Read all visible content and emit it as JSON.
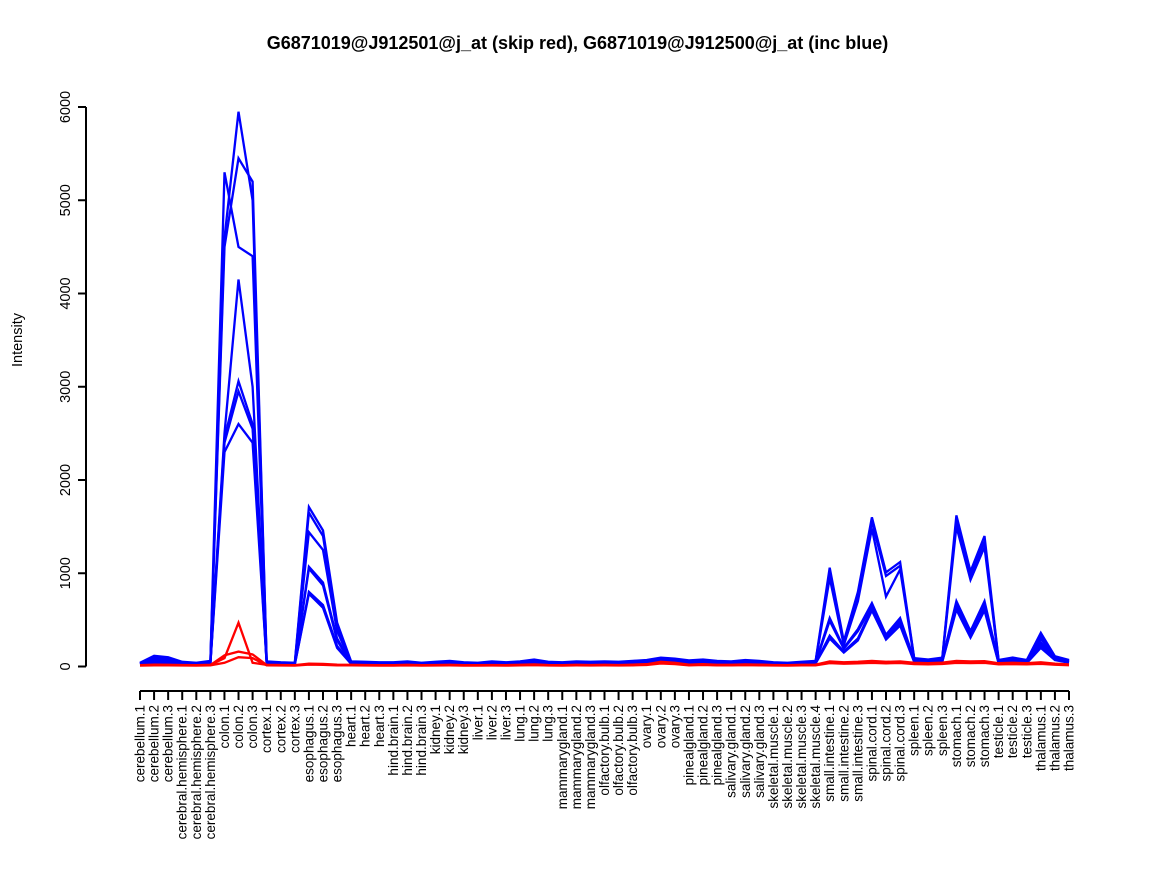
{
  "chart_data": {
    "type": "line",
    "title": "G6871019@J912501@j_at (skip red), G6871019@J912500@j_at (inc blue)",
    "xlabel": "",
    "ylabel": "Intensity",
    "ylim": [
      0,
      6000
    ],
    "yticks": [
      0,
      1000,
      2000,
      3000,
      4000,
      5000,
      6000
    ],
    "grid": false,
    "legend_position": "none",
    "legend_note": {
      "skip_group": "skip red",
      "inc_group": "inc blue"
    },
    "colors": {
      "inc": "#0000ff",
      "skip": "#ff0000",
      "axis": "#000000",
      "background": "#ffffff"
    },
    "categories": [
      "cerebellum.1",
      "cerebellum.2",
      "cerebellum.3",
      "cerebral.hemisphere.1",
      "cerebral.hemisphere.2",
      "cerebral.hemisphere.3",
      "colon.1",
      "colon.2",
      "colon.3",
      "cortex.1",
      "cortex.2",
      "cortex.3",
      "esophagus.1",
      "esophagus.2",
      "esophagus.3",
      "heart.1",
      "heart.2",
      "heart.3",
      "hind.brain.1",
      "hind.brain.2",
      "hind.brain.3",
      "kidney.1",
      "kidney.2",
      "kidney.3",
      "liver.1",
      "liver.2",
      "liver.3",
      "lung.1",
      "lung.2",
      "lung.3",
      "mammarygland.1",
      "mammarygland.2",
      "mammarygland.3",
      "olfactory.bulb.1",
      "olfactory.bulb.2",
      "olfactory.bulb.3",
      "ovary.1",
      "ovary.2",
      "ovary.3",
      "pinealgland.1",
      "pinealgland.2",
      "pinealgland.3",
      "salivary.gland.1",
      "salivary.gland.2",
      "salivary.gland.3",
      "skeletal.muscle.1",
      "skeletal.muscle.2",
      "skeletal.muscle.3",
      "skeletal.muscle.4",
      "small.intestine.1",
      "small.intestine.2",
      "small.intestine.3",
      "spinal.cord.1",
      "spinal.cord.2",
      "spinal.cord.3",
      "spleen.1",
      "spleen.2",
      "spleen.3",
      "stomach.1",
      "stomach.2",
      "stomach.3",
      "testicle.1",
      "testicle.2",
      "testicle.3",
      "thalamus.1",
      "thalamus.2",
      "thalamus.3"
    ],
    "series": [
      {
        "name": "inc-blue-1",
        "group": "inc",
        "color": "#0000ff",
        "values": [
          40,
          115,
          100,
          50,
          40,
          60,
          4600,
          5950,
          5000,
          55,
          45,
          40,
          1710,
          1460,
          470,
          55,
          50,
          45,
          45,
          55,
          40,
          50,
          60,
          45,
          40,
          55,
          45,
          55,
          75,
          50,
          45,
          55,
          50,
          55,
          50,
          60,
          70,
          95,
          85,
          65,
          75,
          60,
          55,
          70,
          60,
          45,
          40,
          50,
          60,
          1060,
          270,
          800,
          1600,
          1010,
          1120,
          90,
          75,
          95,
          1620,
          1020,
          1400,
          70,
          95,
          70,
          360,
          110,
          70
        ]
      },
      {
        "name": "inc-blue-2",
        "group": "inc",
        "color": "#0000ff",
        "values": [
          35,
          95,
          85,
          45,
          35,
          55,
          4500,
          5450,
          5200,
          50,
          40,
          35,
          1650,
          1400,
          430,
          50,
          45,
          40,
          40,
          50,
          35,
          45,
          55,
          40,
          35,
          50,
          40,
          50,
          70,
          45,
          40,
          50,
          45,
          50,
          45,
          55,
          65,
          90,
          80,
          60,
          70,
          55,
          50,
          65,
          55,
          40,
          35,
          45,
          55,
          1000,
          250,
          750,
          1550,
          970,
          1080,
          85,
          70,
          90,
          1560,
          970,
          1340,
          65,
          90,
          65,
          330,
          100,
          65
        ]
      },
      {
        "name": "inc-blue-3",
        "group": "inc",
        "color": "#0000ff",
        "values": [
          30,
          80,
          72,
          40,
          32,
          50,
          5300,
          4500,
          4400,
          45,
          38,
          32,
          1440,
          1250,
          380,
          45,
          40,
          36,
          36,
          45,
          32,
          40,
          50,
          36,
          32,
          45,
          36,
          45,
          62,
          40,
          36,
          45,
          40,
          45,
          40,
          50,
          58,
          82,
          72,
          54,
          64,
          50,
          45,
          58,
          50,
          36,
          32,
          40,
          50,
          950,
          230,
          700,
          1480,
          750,
          1040,
          78,
          64,
          82,
          1500,
          930,
          1280,
          60,
          82,
          60,
          300,
          95,
          60
        ]
      },
      {
        "name": "inc-blue-4",
        "group": "inc",
        "color": "#0000ff",
        "values": [
          28,
          60,
          52,
          36,
          28,
          45,
          2500,
          4150,
          3000,
          40,
          34,
          28,
          1070,
          900,
          300,
          40,
          36,
          32,
          32,
          40,
          28,
          36,
          44,
          32,
          28,
          40,
          32,
          40,
          55,
          36,
          32,
          40,
          36,
          40,
          36,
          44,
          52,
          72,
          64,
          48,
          56,
          44,
          40,
          52,
          44,
          32,
          28,
          36,
          44,
          520,
          200,
          400,
          680,
          340,
          520,
          70,
          56,
          72,
          700,
          380,
          700,
          52,
          72,
          52,
          260,
          85,
          55
        ]
      },
      {
        "name": "inc-blue-5",
        "group": "inc",
        "color": "#0000ff",
        "values": [
          25,
          48,
          45,
          32,
          25,
          40,
          2450,
          3060,
          2600,
          36,
          30,
          25,
          1050,
          870,
          280,
          36,
          32,
          28,
          28,
          36,
          25,
          32,
          40,
          28,
          25,
          36,
          28,
          36,
          50,
          32,
          28,
          36,
          32,
          36,
          32,
          40,
          46,
          64,
          56,
          42,
          50,
          40,
          36,
          46,
          40,
          28,
          25,
          32,
          40,
          490,
          190,
          380,
          650,
          320,
          490,
          62,
          50,
          64,
          660,
          350,
          660,
          46,
          64,
          46,
          240,
          80,
          50
        ]
      },
      {
        "name": "inc-blue-6",
        "group": "inc",
        "color": "#0000ff",
        "values": [
          22,
          42,
          40,
          28,
          22,
          36,
          2400,
          2950,
          2550,
          32,
          26,
          22,
          800,
          660,
          220,
          32,
          28,
          25,
          25,
          32,
          22,
          28,
          36,
          25,
          22,
          32,
          25,
          32,
          44,
          28,
          25,
          32,
          28,
          32,
          28,
          36,
          40,
          56,
          50,
          38,
          44,
          36,
          32,
          40,
          36,
          25,
          22,
          28,
          36,
          330,
          160,
          300,
          620,
          300,
          460,
          55,
          44,
          56,
          630,
          330,
          630,
          40,
          56,
          40,
          220,
          75,
          45
        ]
      },
      {
        "name": "inc-blue-7",
        "group": "inc",
        "color": "#0000ff",
        "values": [
          20,
          38,
          36,
          25,
          20,
          32,
          2300,
          2600,
          2400,
          28,
          23,
          20,
          780,
          630,
          200,
          28,
          25,
          22,
          22,
          28,
          20,
          25,
          32,
          22,
          20,
          28,
          22,
          28,
          40,
          25,
          22,
          28,
          25,
          28,
          25,
          32,
          36,
          50,
          44,
          34,
          40,
          32,
          28,
          36,
          32,
          22,
          20,
          25,
          32,
          300,
          150,
          280,
          600,
          290,
          440,
          48,
          40,
          50,
          610,
          310,
          600,
          36,
          50,
          36,
          200,
          70,
          40
        ]
      },
      {
        "name": "skip-red-1",
        "group": "skip",
        "color": "#ff0000",
        "values": [
          15,
          20,
          18,
          16,
          15,
          18,
          90,
          470,
          40,
          18,
          16,
          15,
          30,
          28,
          20,
          18,
          16,
          15,
          15,
          18,
          15,
          16,
          18,
          15,
          15,
          16,
          15,
          18,
          22,
          16,
          15,
          18,
          16,
          18,
          16,
          20,
          25,
          50,
          40,
          20,
          25,
          18,
          18,
          22,
          20,
          16,
          15,
          18,
          20,
          55,
          45,
          50,
          60,
          50,
          55,
          40,
          35,
          42,
          60,
          55,
          58,
          35,
          40,
          35,
          45,
          30,
          22
        ]
      },
      {
        "name": "skip-red-2",
        "group": "skip",
        "color": "#ff0000",
        "values": [
          12,
          16,
          15,
          13,
          12,
          15,
          120,
          160,
          130,
          15,
          13,
          12,
          25,
          22,
          16,
          15,
          13,
          12,
          12,
          15,
          12,
          13,
          15,
          12,
          12,
          13,
          12,
          15,
          18,
          13,
          12,
          15,
          13,
          15,
          13,
          16,
          20,
          40,
          32,
          16,
          20,
          15,
          15,
          18,
          16,
          13,
          12,
          15,
          16,
          45,
          38,
          42,
          50,
          42,
          46,
          32,
          28,
          34,
          50,
          45,
          48,
          28,
          32,
          28,
          36,
          24,
          18
        ]
      },
      {
        "name": "skip-red-3",
        "group": "skip",
        "color": "#ff0000",
        "values": [
          10,
          13,
          12,
          11,
          10,
          12,
          40,
          100,
          90,
          12,
          11,
          10,
          20,
          18,
          13,
          12,
          11,
          10,
          10,
          12,
          10,
          11,
          12,
          10,
          10,
          11,
          10,
          12,
          15,
          11,
          10,
          12,
          11,
          12,
          11,
          13,
          16,
          32,
          26,
          13,
          16,
          12,
          12,
          15,
          13,
          11,
          10,
          12,
          13,
          36,
          30,
          34,
          40,
          34,
          38,
          26,
          22,
          27,
          40,
          36,
          39,
          22,
          26,
          22,
          28,
          19,
          14
        ]
      }
    ]
  }
}
